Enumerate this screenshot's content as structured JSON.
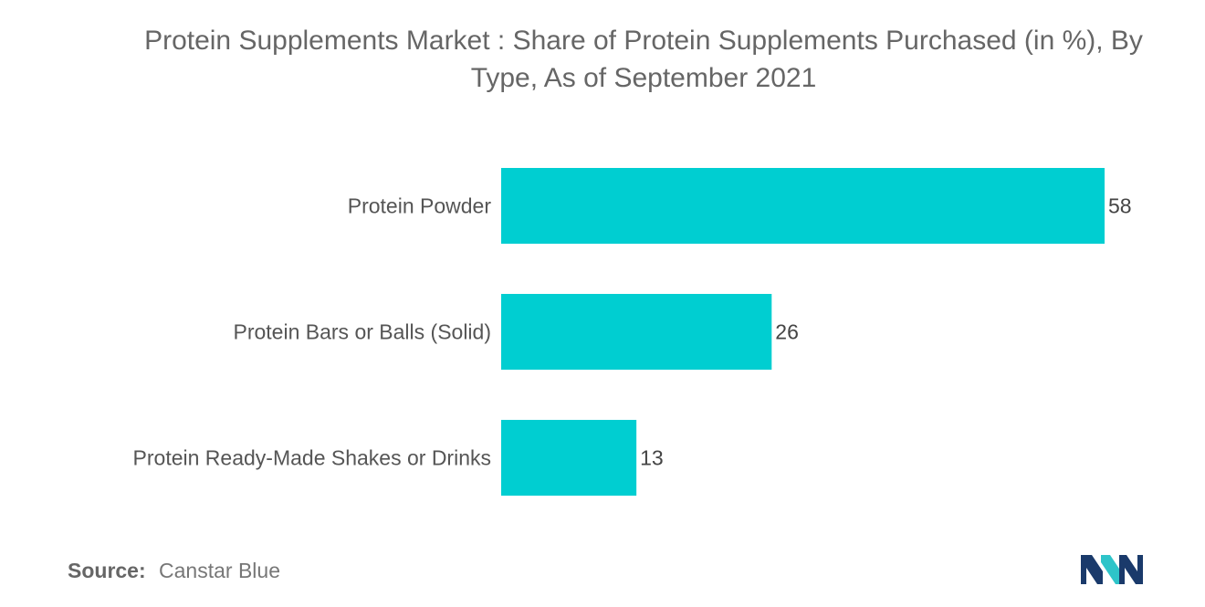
{
  "header": {
    "title_line1": "Protein Supplements Market : Share of Protein Supplements Purchased (in %), By",
    "title_line2": "Type, As of September 2021"
  },
  "chart_data": {
    "type": "bar",
    "orientation": "horizontal",
    "title": "Protein Supplements Market : Share of Protein Supplements Purchased (in %), By Type, As of September 2021",
    "categories": [
      "Protein Powder",
      "Protein Bars or Balls (Solid)",
      "Protein Ready-Made Shakes or Drinks"
    ],
    "values": [
      58,
      26,
      13
    ],
    "value_labels": [
      "58",
      "26",
      "13"
    ],
    "xlim": [
      0,
      58
    ],
    "grid": false,
    "legend": "none",
    "bar_color": "#00ced1"
  },
  "footer": {
    "source_key": "Source:",
    "source_value": "Canstar Blue"
  },
  "logo": {
    "icon": "mordor-intelligence-logo",
    "colors": [
      "#1a3a6b",
      "#2ec4c9"
    ]
  }
}
